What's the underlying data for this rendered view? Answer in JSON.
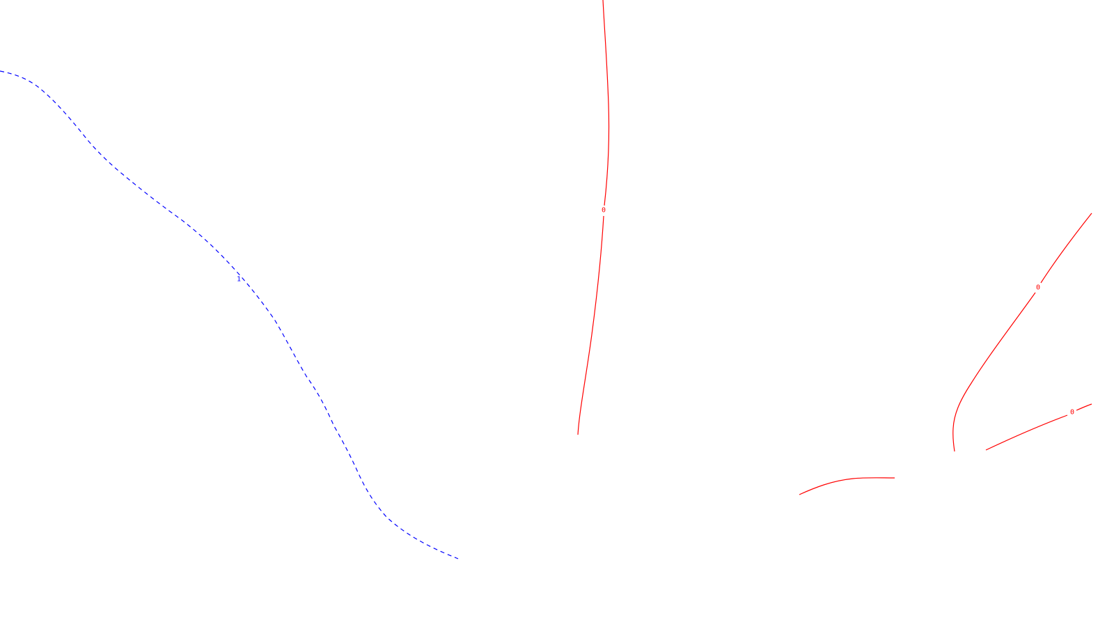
{
  "contours": [
    {
      "id": "blue-dashed-contour",
      "level_label": "1",
      "color": "#0000ff",
      "style": "dashed"
    },
    {
      "id": "red-contour-vertical",
      "level_label": "0",
      "color": "#ff0000",
      "style": "solid"
    },
    {
      "id": "red-contour-diagonal",
      "level_label": "0",
      "color": "#ff0000",
      "style": "solid"
    },
    {
      "id": "red-contour-lower-right",
      "level_label": "0",
      "color": "#ff0000",
      "style": "solid"
    },
    {
      "id": "red-contour-bottom-segment",
      "level_label": "",
      "color": "#ff0000",
      "style": "solid"
    }
  ]
}
